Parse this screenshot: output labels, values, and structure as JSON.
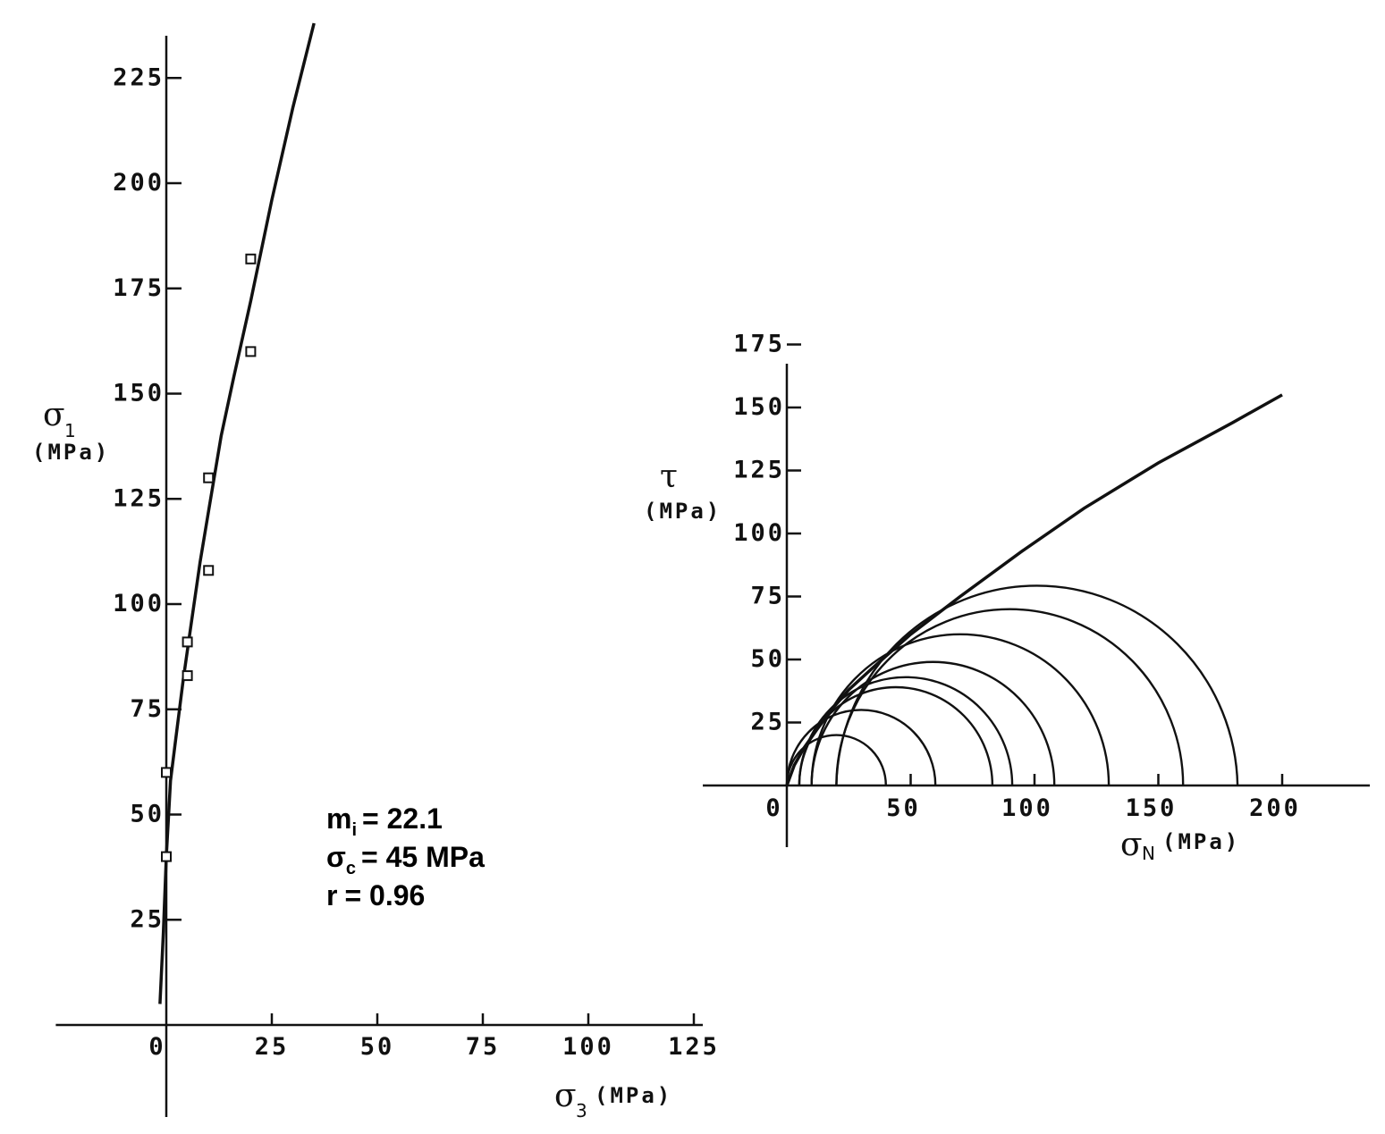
{
  "chart_data": [
    {
      "type": "scatter",
      "title": "",
      "xlabel": {
        "symbol": "σ",
        "subscript": "3",
        "unit": "(MPa)"
      },
      "ylabel": {
        "symbol": "σ",
        "subscript": "1",
        "unit": "(MPa)"
      },
      "xlim": [
        -5,
        125
      ],
      "ylim": [
        -18,
        235
      ],
      "x_ticks": [
        0,
        25,
        50,
        75,
        100,
        125
      ],
      "y_ticks": [
        25,
        50,
        75,
        100,
        125,
        150,
        175,
        200,
        225
      ],
      "series": [
        {
          "kind": "points",
          "x": [
            0,
            0,
            5,
            5,
            10,
            10,
            20,
            20
          ],
          "y": [
            40,
            60,
            83,
            91,
            108,
            130,
            160,
            182
          ]
        },
        {
          "kind": "fit_curve",
          "x": [
            -1.5,
            -0.7,
            0,
            1,
            2,
            4,
            6,
            8,
            10,
            13,
            16,
            20,
            25,
            30,
            35
          ],
          "y": [
            5,
            22,
            40,
            58,
            66,
            82,
            96,
            110,
            122,
            140,
            154,
            172,
            196,
            218,
            238
          ]
        }
      ],
      "annotations": [
        {
          "name": "m",
          "subscript": "i",
          "value": "= 22.1"
        },
        {
          "name": "σ",
          "subscript": "c",
          "value": "= 45 MPa"
        },
        {
          "name": "r",
          "subscript": "",
          "value": "= 0.96"
        }
      ],
      "grid": false
    },
    {
      "type": "line",
      "title": "",
      "xlabel": {
        "symbol": "σ",
        "subscript": "N",
        "unit": "(MPa)"
      },
      "ylabel": {
        "symbol": "τ",
        "subscript": "",
        "unit": "(MPa)"
      },
      "xlim": [
        -30,
        220
      ],
      "ylim": [
        -25,
        175
      ],
      "x_ticks": [
        0,
        50,
        100,
        150,
        200
      ],
      "y_ticks": [
        25,
        50,
        75,
        100,
        125,
        150,
        175
      ],
      "y_zero_label": "0",
      "series": [
        {
          "kind": "failure_envelope",
          "x": [
            0,
            3,
            7,
            12,
            18,
            25,
            35,
            50,
            70,
            95,
            120,
            150,
            180,
            200
          ],
          "y": [
            0,
            8,
            15,
            22,
            30,
            38,
            47,
            60,
            75,
            93,
            110,
            128,
            144,
            155
          ]
        },
        {
          "kind": "mohr_circles",
          "sigma3": [
            0,
            0,
            5,
            5,
            10,
            10,
            20,
            20
          ],
          "sigma1": [
            40,
            60,
            83,
            91,
            108,
            130,
            160,
            182
          ]
        }
      ],
      "grid": false
    }
  ]
}
